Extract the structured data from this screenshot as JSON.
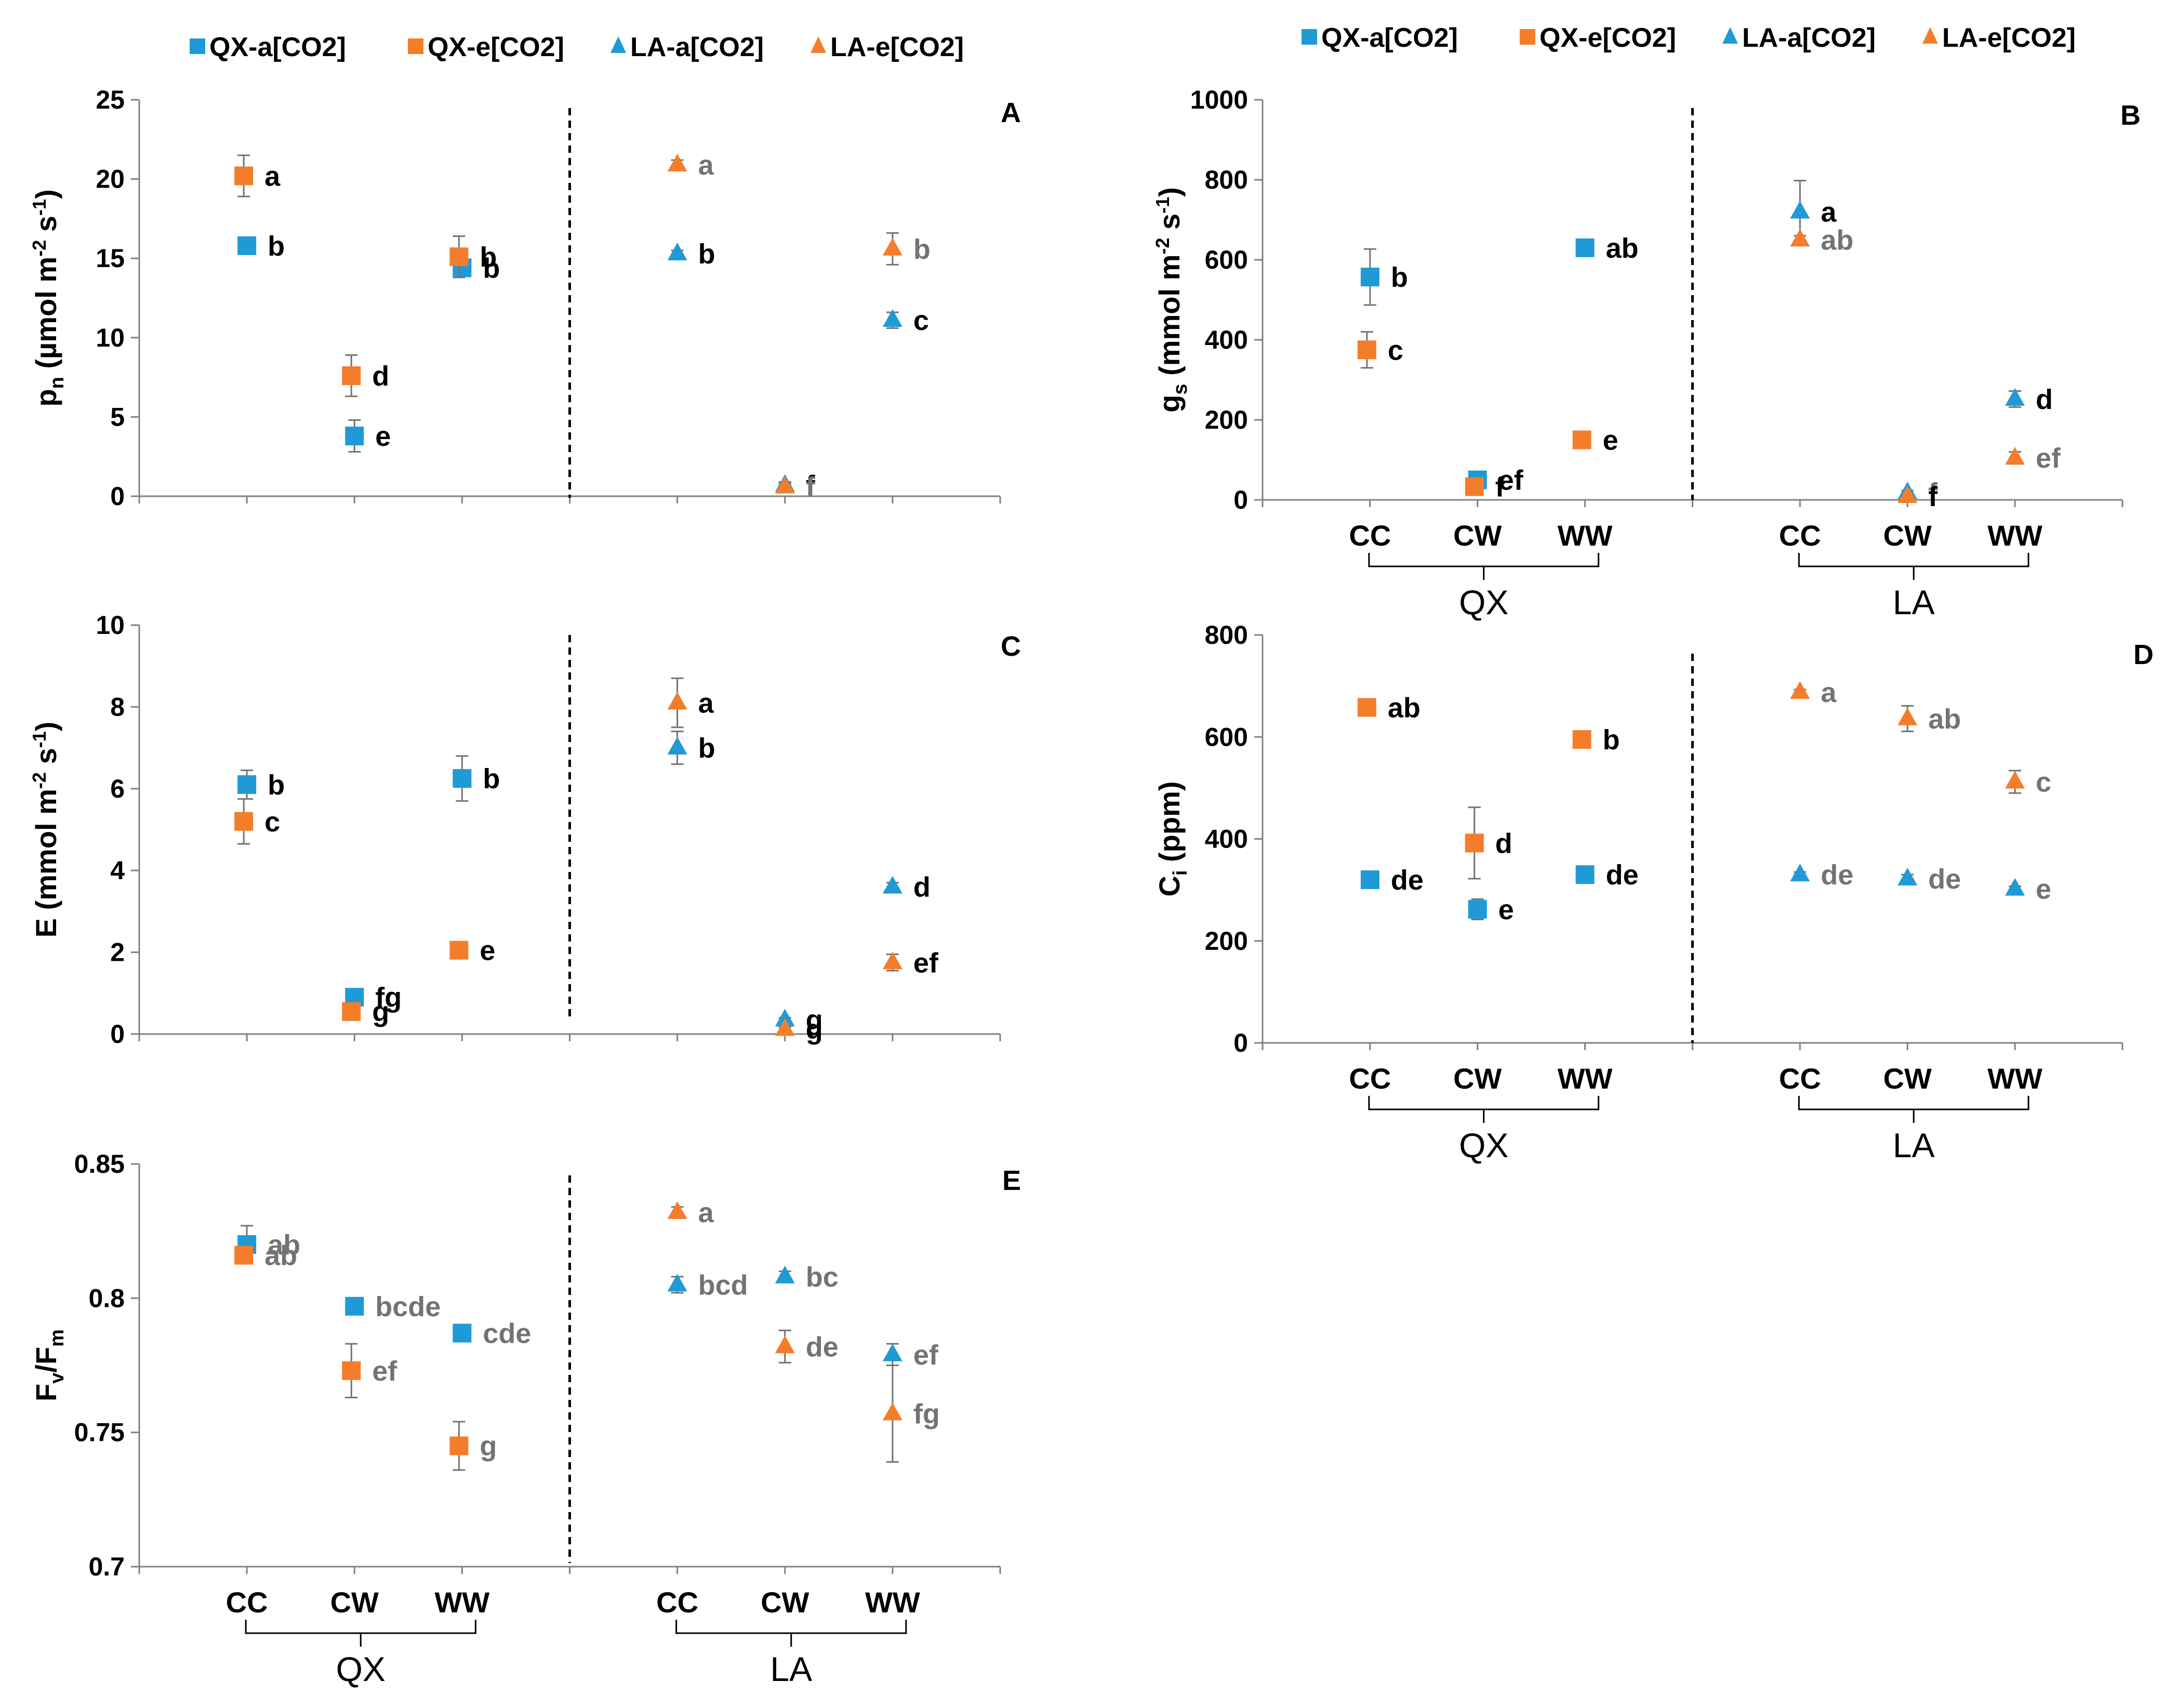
{
  "colors": {
    "qx_a": "#1f9ad6",
    "qx_e": "#f47d2b",
    "la_a": "#1f9ad6",
    "la_e": "#f47d2b",
    "sig_dark": "#000000",
    "sig_grey": "#737373"
  },
  "legend": [
    {
      "label": "QX-a[CO2]",
      "marker": "square",
      "color": "#1f9ad6"
    },
    {
      "label": "QX-e[CO2]",
      "marker": "square",
      "color": "#f47d2b"
    },
    {
      "label": "LA-a[CO2]",
      "marker": "triangle",
      "color": "#1f9ad6"
    },
    {
      "label": "LA-e[CO2]",
      "marker": "triangle",
      "color": "#f47d2b"
    }
  ],
  "chart_data": [
    {
      "panel": "A",
      "type": "scatter",
      "ylabel_main": "p",
      "ylabel_sub": "n",
      "ylabel_rest": " (µmol m",
      "ylabel_sup1": "-2",
      "ylabel_mid": " s",
      "ylabel_sup2": "-1",
      "ylabel_end": ")",
      "ylim": [
        0,
        25
      ],
      "yticks": [
        "0",
        "5",
        "10",
        "15",
        "20",
        "25"
      ],
      "tick_values": [
        0,
        5,
        10,
        15,
        20,
        25
      ],
      "categories": [
        "CC",
        "CW",
        "WW"
      ],
      "groups": [
        "QX",
        "LA"
      ],
      "show_xlabels": false,
      "series": [
        {
          "name": "QX-a[CO2]",
          "group": "QX",
          "values": [
            15.8,
            3.8,
            14.4
          ],
          "errors": [
            0.3,
            1.0,
            0.4
          ],
          "letters": [
            "b",
            "e",
            "b"
          ],
          "letter_shade": [
            "dark",
            "dark",
            "dark"
          ]
        },
        {
          "name": "QX-e[CO2]",
          "group": "QX",
          "values": [
            20.2,
            7.6,
            15.1
          ],
          "errors": [
            1.3,
            1.3,
            1.3
          ],
          "letters": [
            "a",
            "d",
            "b"
          ],
          "letter_shade": [
            "dark",
            "dark",
            "dark"
          ]
        },
        {
          "name": "LA-a[CO2]",
          "group": "LA",
          "values": [
            15.3,
            0.7,
            11.1
          ],
          "errors": [
            0.2,
            0.2,
            0.5
          ],
          "letters": [
            "b",
            "f",
            "c"
          ],
          "letter_shade": [
            "dark",
            "dark",
            "dark"
          ]
        },
        {
          "name": "LA-e[CO2]",
          "group": "LA",
          "values": [
            20.9,
            0.6,
            15.6
          ],
          "errors": [
            0.3,
            0.2,
            1.0
          ],
          "letters": [
            "a",
            "f",
            "b"
          ],
          "letter_shade": [
            "grey",
            "grey",
            "grey"
          ]
        }
      ]
    },
    {
      "panel": "B",
      "type": "scatter",
      "ylabel_main": "g",
      "ylabel_sub": "s",
      "ylabel_rest": " (mmol m",
      "ylabel_sup1": "-2",
      "ylabel_mid": " s",
      "ylabel_sup2": "-1",
      "ylabel_end": ")",
      "ylim": [
        0,
        1000
      ],
      "yticks": [
        "0",
        "200",
        "400",
        "600",
        "800",
        "1000"
      ],
      "tick_values": [
        0,
        200,
        400,
        600,
        800,
        1000
      ],
      "categories": [
        "CC",
        "CW",
        "WW"
      ],
      "groups": [
        "QX",
        "LA"
      ],
      "show_xlabels": true,
      "series": [
        {
          "name": "QX-a[CO2]",
          "group": "QX",
          "values": [
            557,
            50,
            630
          ],
          "errors": [
            70,
            8,
            15
          ],
          "letters": [
            "b",
            "ef",
            "ab"
          ],
          "letter_shade": [
            "dark",
            "dark",
            "dark"
          ]
        },
        {
          "name": "QX-e[CO2]",
          "group": "QX",
          "values": [
            375,
            33,
            150
          ],
          "errors": [
            45,
            5,
            8
          ],
          "letters": [
            "c",
            "f",
            "e"
          ],
          "letter_shade": [
            "dark",
            "dark",
            "dark"
          ]
        },
        {
          "name": "LA-a[CO2]",
          "group": "LA",
          "values": [
            720,
            18,
            252
          ],
          "errors": [
            78,
            5,
            20
          ],
          "letters": [
            "a",
            "f",
            "d"
          ],
          "letter_shade": [
            "dark",
            "grey",
            "dark"
          ]
        },
        {
          "name": "LA-e[CO2]",
          "group": "LA",
          "values": [
            650,
            9,
            105
          ],
          "errors": [
            10,
            3,
            15
          ],
          "letters": [
            "ab",
            "f",
            "ef"
          ],
          "letter_shade": [
            "grey",
            "dark",
            "grey"
          ]
        }
      ]
    },
    {
      "panel": "C",
      "type": "scatter",
      "ylabel_main": "E",
      "ylabel_sub": "",
      "ylabel_rest": " (mmol m",
      "ylabel_sup1": "-2",
      "ylabel_mid": " s",
      "ylabel_sup2": "-1",
      "ylabel_end": ")",
      "ylim": [
        0,
        10
      ],
      "yticks": [
        "0",
        "2",
        "4",
        "6",
        "8",
        "10"
      ],
      "tick_values": [
        0,
        2,
        4,
        6,
        8,
        10
      ],
      "categories": [
        "CC",
        "CW",
        "WW"
      ],
      "groups": [
        "QX",
        "LA"
      ],
      "show_xlabels": false,
      "series": [
        {
          "name": "QX-a[CO2]",
          "group": "QX",
          "values": [
            6.1,
            0.9,
            6.25
          ],
          "errors": [
            0.35,
            0.2,
            0.55
          ],
          "letters": [
            "b",
            "fg",
            "b"
          ],
          "letter_shade": [
            "dark",
            "dark",
            "dark"
          ]
        },
        {
          "name": "QX-e[CO2]",
          "group": "QX",
          "values": [
            5.2,
            0.55,
            2.05
          ],
          "errors": [
            0.55,
            0.1,
            0.1
          ],
          "letters": [
            "c",
            "g",
            "e"
          ],
          "letter_shade": [
            "dark",
            "dark",
            "dark"
          ]
        },
        {
          "name": "LA-a[CO2]",
          "group": "LA",
          "values": [
            7.0,
            0.35,
            3.6
          ],
          "errors": [
            0.4,
            0.05,
            0.1
          ],
          "letters": [
            "b",
            "g",
            "d"
          ],
          "letter_shade": [
            "dark",
            "dark",
            "dark"
          ]
        },
        {
          "name": "LA-e[CO2]",
          "group": "LA",
          "values": [
            8.1,
            0.12,
            1.75
          ],
          "errors": [
            0.6,
            0.05,
            0.2
          ],
          "letters": [
            "a",
            "g",
            "ef"
          ],
          "letter_shade": [
            "dark",
            "dark",
            "dark"
          ]
        }
      ]
    },
    {
      "panel": "D",
      "type": "scatter",
      "ylabel_main": "C",
      "ylabel_sub": "i",
      "ylabel_rest": " (ppm)",
      "ylabel_sup1": "",
      "ylabel_mid": "",
      "ylabel_sup2": "",
      "ylabel_end": "",
      "ylim": [
        0,
        800
      ],
      "yticks": [
        "0",
        "200",
        "400",
        "600",
        "800"
      ],
      "tick_values": [
        0,
        200,
        400,
        600,
        800
      ],
      "categories": [
        "CC",
        "CW",
        "WW"
      ],
      "groups": [
        "QX",
        "LA"
      ],
      "show_xlabels": true,
      "series": [
        {
          "name": "QX-a[CO2]",
          "group": "QX",
          "values": [
            320,
            262,
            330
          ],
          "errors": [
            8,
            20,
            8
          ],
          "letters": [
            "de",
            "e",
            "de"
          ],
          "letter_shade": [
            "dark",
            "dark",
            "dark"
          ]
        },
        {
          "name": "QX-e[CO2]",
          "group": "QX",
          "values": [
            658,
            392,
            595
          ],
          "errors": [
            5,
            70,
            15
          ],
          "letters": [
            "ab",
            "d",
            "b"
          ],
          "letter_shade": [
            "dark",
            "dark",
            "dark"
          ]
        },
        {
          "name": "LA-a[CO2]",
          "group": "LA",
          "values": [
            330,
            322,
            302
          ],
          "errors": [
            5,
            8,
            5
          ],
          "letters": [
            "de",
            "de",
            "e"
          ],
          "letter_shade": [
            "grey",
            "grey",
            "grey"
          ]
        },
        {
          "name": "LA-e[CO2]",
          "group": "LA",
          "values": [
            688,
            636,
            512
          ],
          "errors": [
            5,
            25,
            22
          ],
          "letters": [
            "a",
            "ab",
            "c"
          ],
          "letter_shade": [
            "grey",
            "grey",
            "grey"
          ]
        }
      ]
    },
    {
      "panel": "E",
      "type": "scatter",
      "ylabel_main": "F",
      "ylabel_sub": "v",
      "ylabel_rest": "/F",
      "ylabel_sup1": "",
      "ylabel_mid": "",
      "ylabel_sup2": "",
      "ylabel_end": "",
      "ylabel_sub2": "m",
      "ylim": [
        0.7,
        0.85
      ],
      "yticks": [
        "0.7",
        "0.75",
        "0.8",
        "0.85"
      ],
      "tick_values": [
        0.7,
        0.75,
        0.8,
        0.85
      ],
      "categories": [
        "CC",
        "CW",
        "WW"
      ],
      "groups": [
        "QX",
        "LA"
      ],
      "show_xlabels": true,
      "series": [
        {
          "name": "QX-a[CO2]",
          "group": "QX",
          "values": [
            0.82,
            0.797,
            0.787
          ],
          "errors": [
            0.007,
            0.002,
            0.003
          ],
          "letters": [
            "ab",
            "bcde",
            "cde"
          ],
          "letter_shade": [
            "grey",
            "grey",
            "grey"
          ]
        },
        {
          "name": "QX-e[CO2]",
          "group": "QX",
          "values": [
            0.816,
            0.773,
            0.745
          ],
          "errors": [
            0.002,
            0.01,
            0.009
          ],
          "letters": [
            "ab",
            "ef",
            "g"
          ],
          "letter_shade": [
            "grey",
            "grey",
            "grey"
          ]
        },
        {
          "name": "LA-a[CO2]",
          "group": "LA",
          "values": [
            0.805,
            0.808,
            0.779
          ],
          "errors": [
            0.003,
            0.002,
            0.004
          ],
          "letters": [
            "bcd",
            "bc",
            "ef"
          ],
          "letter_shade": [
            "grey",
            "grey",
            "grey"
          ]
        },
        {
          "name": "LA-e[CO2]",
          "group": "LA",
          "values": [
            0.832,
            0.782,
            0.757
          ],
          "errors": [
            0.002,
            0.006,
            0.018
          ],
          "letters": [
            "a",
            "de",
            "fg"
          ],
          "letter_shade": [
            "grey",
            "grey",
            "grey"
          ]
        }
      ]
    }
  ]
}
